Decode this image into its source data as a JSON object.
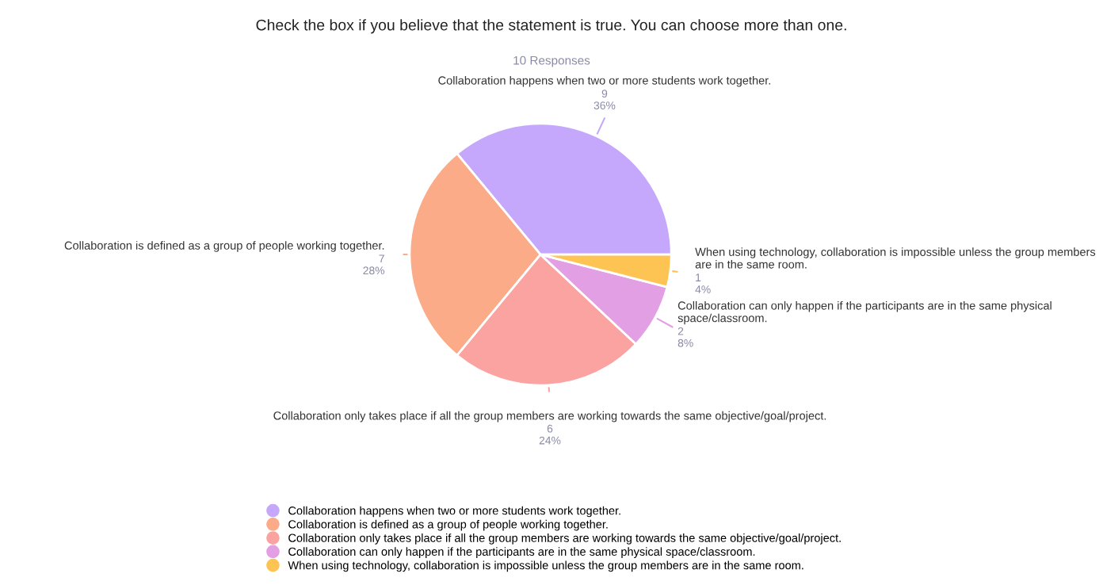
{
  "chart_data": {
    "type": "pie",
    "title": "Check the box if you believe that the statement is true. You can choose more than one.",
    "subtitle": "10 Responses",
    "categories": [
      "Collaboration happens when two or more students work together.",
      "Collaboration is defined as a group of people working together.",
      "Collaboration only takes place if all the group members are working towards the same objective/goal/project.",
      "Collaboration can only happen if the participants are in the same physical space/classroom.",
      "When using technology, collaboration is impossible unless the group members are in the same room."
    ],
    "values": [
      9,
      7,
      6,
      2,
      1
    ],
    "value_labels": [
      "9\n36%",
      "7\n28%",
      "6\n24%",
      "2\n8%",
      "1\n4%"
    ],
    "colors": [
      "#c5a8fc",
      "#fbab88",
      "#fba3a0",
      "#e29fe3",
      "#fec453"
    ],
    "legend": "bottom"
  }
}
